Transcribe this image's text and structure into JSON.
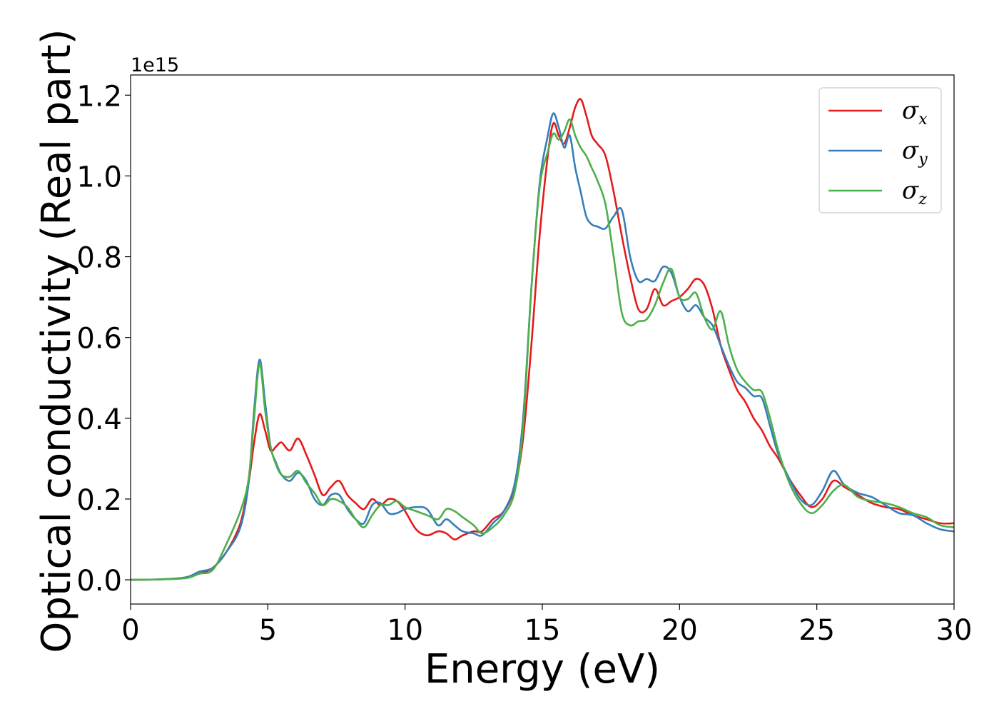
{
  "chart_data": {
    "type": "line",
    "xlabel": "Energy (eV)",
    "ylabel": "Optical conductivity (Real part)",
    "y_offset_label": "1e15",
    "xlim": [
      0,
      30
    ],
    "ylim": [
      -0.06,
      1.25
    ],
    "xticks": [
      0,
      5,
      10,
      15,
      20,
      25,
      30
    ],
    "xtick_labels": [
      "0",
      "5",
      "10",
      "15",
      "20",
      "25",
      "30"
    ],
    "yticks": [
      0.0,
      0.2,
      0.4,
      0.6,
      0.8,
      1.0,
      1.2
    ],
    "ytick_labels": [
      "0.0",
      "0.2",
      "0.4",
      "0.6",
      "0.8",
      "1.0",
      "1.2"
    ],
    "grid": false,
    "legend_position": "top-right",
    "series": [
      {
        "name": "σx",
        "symbol": "σ",
        "subscript": "x",
        "color": "#e41a1c",
        "x": [
          0,
          1,
          2,
          2.5,
          3,
          3.5,
          4,
          4.3,
          4.5,
          4.7,
          4.9,
          5.1,
          5.3,
          5.5,
          5.8,
          6.1,
          6.4,
          6.7,
          7.0,
          7.3,
          7.6,
          7.9,
          8.2,
          8.5,
          8.8,
          9.1,
          9.4,
          9.7,
          10.0,
          10.4,
          10.8,
          11.2,
          11.5,
          11.8,
          12.1,
          12.5,
          12.8,
          13.2,
          13.6,
          14.0,
          14.3,
          14.6,
          14.9,
          15.2,
          15.4,
          15.6,
          15.8,
          16.0,
          16.2,
          16.4,
          16.6,
          16.8,
          17.0,
          17.3,
          17.6,
          17.9,
          18.2,
          18.5,
          18.8,
          19.1,
          19.4,
          19.7,
          20.0,
          20.3,
          20.6,
          20.9,
          21.2,
          21.5,
          21.8,
          22.1,
          22.4,
          22.7,
          23.0,
          23.3,
          23.6,
          24.0,
          24.4,
          24.8,
          25.2,
          25.6,
          26.0,
          26.5,
          27.0,
          27.5,
          28.0,
          28.5,
          29.0,
          29.5,
          30.0
        ],
        "y": [
          0,
          0.001,
          0.005,
          0.015,
          0.03,
          0.07,
          0.14,
          0.24,
          0.34,
          0.41,
          0.37,
          0.32,
          0.33,
          0.34,
          0.32,
          0.35,
          0.31,
          0.26,
          0.21,
          0.23,
          0.245,
          0.21,
          0.19,
          0.175,
          0.2,
          0.185,
          0.2,
          0.195,
          0.17,
          0.125,
          0.11,
          0.12,
          0.115,
          0.1,
          0.11,
          0.12,
          0.12,
          0.15,
          0.17,
          0.23,
          0.35,
          0.58,
          0.85,
          1.05,
          1.13,
          1.1,
          1.08,
          1.12,
          1.17,
          1.19,
          1.15,
          1.1,
          1.08,
          1.05,
          0.96,
          0.85,
          0.75,
          0.67,
          0.67,
          0.72,
          0.68,
          0.69,
          0.7,
          0.72,
          0.745,
          0.73,
          0.67,
          0.58,
          0.52,
          0.47,
          0.44,
          0.4,
          0.37,
          0.33,
          0.3,
          0.25,
          0.21,
          0.18,
          0.2,
          0.245,
          0.23,
          0.21,
          0.19,
          0.18,
          0.175,
          0.16,
          0.15,
          0.14,
          0.14
        ]
      },
      {
        "name": "σy",
        "symbol": "σ",
        "subscript": "y",
        "color": "#377eb8",
        "x": [
          0,
          1,
          2,
          2.5,
          3,
          3.5,
          4,
          4.3,
          4.5,
          4.7,
          4.9,
          5.1,
          5.3,
          5.5,
          5.8,
          6.1,
          6.4,
          6.7,
          7.0,
          7.3,
          7.6,
          7.9,
          8.2,
          8.5,
          8.8,
          9.1,
          9.4,
          9.7,
          10.0,
          10.4,
          10.8,
          11.2,
          11.5,
          11.8,
          12.1,
          12.5,
          12.8,
          13.2,
          13.6,
          14.0,
          14.3,
          14.6,
          14.9,
          15.2,
          15.4,
          15.6,
          15.8,
          16.0,
          16.2,
          16.4,
          16.6,
          16.8,
          17.0,
          17.3,
          17.6,
          17.9,
          18.2,
          18.5,
          18.8,
          19.1,
          19.4,
          19.7,
          20.0,
          20.3,
          20.6,
          20.9,
          21.2,
          21.5,
          21.8,
          22.1,
          22.4,
          22.7,
          23.0,
          23.3,
          23.6,
          24.0,
          24.4,
          24.8,
          25.2,
          25.6,
          26.0,
          26.5,
          27.0,
          27.5,
          28.0,
          28.5,
          29.0,
          29.5,
          30.0
        ],
        "y": [
          0,
          0.001,
          0.006,
          0.02,
          0.03,
          0.07,
          0.13,
          0.24,
          0.42,
          0.545,
          0.44,
          0.33,
          0.29,
          0.26,
          0.245,
          0.265,
          0.245,
          0.2,
          0.185,
          0.21,
          0.21,
          0.175,
          0.15,
          0.14,
          0.185,
          0.19,
          0.165,
          0.165,
          0.175,
          0.18,
          0.175,
          0.135,
          0.15,
          0.135,
          0.12,
          0.115,
          0.11,
          0.14,
          0.17,
          0.24,
          0.4,
          0.72,
          0.98,
          1.1,
          1.155,
          1.12,
          1.07,
          1.1,
          1.02,
          0.96,
          0.9,
          0.88,
          0.875,
          0.87,
          0.9,
          0.915,
          0.8,
          0.74,
          0.745,
          0.74,
          0.775,
          0.76,
          0.7,
          0.665,
          0.68,
          0.65,
          0.63,
          0.58,
          0.53,
          0.49,
          0.475,
          0.455,
          0.45,
          0.38,
          0.31,
          0.25,
          0.2,
          0.185,
          0.22,
          0.27,
          0.235,
          0.215,
          0.205,
          0.185,
          0.165,
          0.16,
          0.14,
          0.125,
          0.12
        ]
      },
      {
        "name": "σz",
        "symbol": "σ",
        "subscript": "z",
        "color": "#4daf4a",
        "x": [
          0,
          1,
          2,
          2.5,
          3,
          3.5,
          4,
          4.3,
          4.5,
          4.7,
          4.9,
          5.1,
          5.3,
          5.5,
          5.8,
          6.1,
          6.4,
          6.7,
          7.0,
          7.3,
          7.6,
          7.9,
          8.2,
          8.5,
          8.8,
          9.1,
          9.4,
          9.7,
          10.0,
          10.4,
          10.8,
          11.2,
          11.5,
          11.8,
          12.1,
          12.5,
          12.8,
          13.2,
          13.6,
          14.0,
          14.3,
          14.6,
          14.9,
          15.2,
          15.4,
          15.6,
          15.8,
          16.0,
          16.2,
          16.4,
          16.6,
          16.8,
          17.0,
          17.3,
          17.6,
          17.9,
          18.2,
          18.5,
          18.8,
          19.1,
          19.4,
          19.7,
          20.0,
          20.3,
          20.6,
          20.9,
          21.2,
          21.5,
          21.8,
          22.1,
          22.4,
          22.7,
          23.0,
          23.3,
          23.6,
          24.0,
          24.4,
          24.8,
          25.2,
          25.6,
          26.0,
          26.5,
          27.0,
          27.5,
          28.0,
          28.5,
          29.0,
          29.5,
          30.0
        ],
        "y": [
          0,
          0.001,
          0.004,
          0.015,
          0.025,
          0.09,
          0.17,
          0.25,
          0.4,
          0.535,
          0.42,
          0.33,
          0.285,
          0.26,
          0.255,
          0.27,
          0.24,
          0.215,
          0.185,
          0.2,
          0.195,
          0.18,
          0.15,
          0.13,
          0.16,
          0.185,
          0.185,
          0.195,
          0.18,
          0.17,
          0.16,
          0.15,
          0.175,
          0.17,
          0.155,
          0.135,
          0.115,
          0.13,
          0.16,
          0.22,
          0.38,
          0.72,
          0.97,
          1.06,
          1.105,
          1.09,
          1.11,
          1.14,
          1.1,
          1.07,
          1.05,
          1.02,
          0.99,
          0.93,
          0.8,
          0.66,
          0.63,
          0.64,
          0.645,
          0.68,
          0.735,
          0.77,
          0.7,
          0.695,
          0.71,
          0.65,
          0.62,
          0.665,
          0.58,
          0.52,
          0.49,
          0.47,
          0.465,
          0.4,
          0.32,
          0.24,
          0.19,
          0.165,
          0.185,
          0.22,
          0.235,
          0.205,
          0.195,
          0.19,
          0.18,
          0.165,
          0.155,
          0.135,
          0.13
        ]
      }
    ]
  }
}
